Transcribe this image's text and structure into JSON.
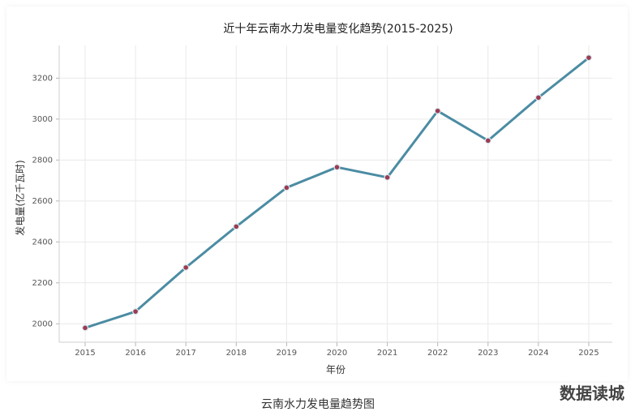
{
  "colors": {
    "line": "#4b8ca3",
    "point_fill": "#9b3b52",
    "point_stroke": "#d9e7ee",
    "background": "#ffffff"
  },
  "caption": "云南水力发电量趋势图",
  "watermark": "数据读城",
  "chart_data": {
    "type": "line",
    "title": "近十年云南水力发电量变化趋势(2015-2025)",
    "xlabel": "年份",
    "ylabel": "发电量(亿千瓦时)",
    "x": [
      2015,
      2016,
      2017,
      2018,
      2019,
      2020,
      2021,
      2022,
      2023,
      2024,
      2025
    ],
    "yticks": [
      2000,
      2200,
      2400,
      2600,
      2800,
      3000,
      3200
    ],
    "ylim": [
      1910,
      3360
    ],
    "series": [
      {
        "values": [
          1980,
          2060,
          2275,
          2475,
          2665,
          2765,
          2715,
          3040,
          2895,
          3105,
          3300
        ]
      }
    ],
    "grid": true,
    "legend": "none"
  }
}
